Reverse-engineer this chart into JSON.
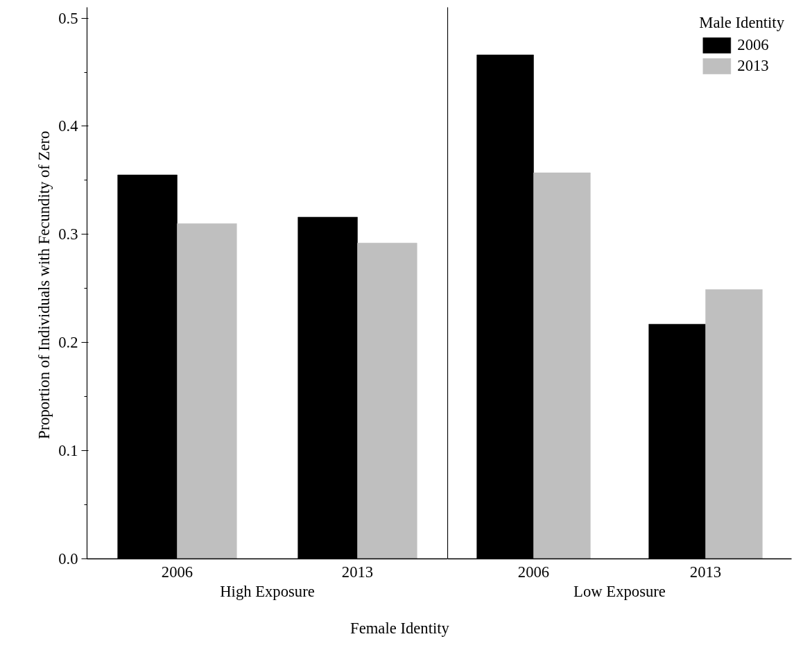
{
  "chart_data": [
    {
      "type": "bar",
      "xlabel": "High Exposure",
      "ylabel": "Proportion of  Individuals with Fecundity of Zero",
      "categories": [
        "2006",
        "2013"
      ],
      "series": [
        {
          "color": "#000000",
          "values": [
            0.355,
            0.316
          ]
        },
        {
          "color": "#bfbfbf",
          "values": [
            0.31,
            0.292
          ]
        }
      ],
      "ylim": [
        0,
        0.51
      ],
      "yticks": [
        {
          "value": 0,
          "label": "0.0"
        },
        {
          "value": 0.05,
          "label": null
        },
        {
          "value": 0.1,
          "label": "0.1"
        },
        {
          "value": 0.15,
          "label": null
        },
        {
          "value": 0.2,
          "label": "0.2"
        },
        {
          "value": 0.25,
          "label": null
        },
        {
          "value": 0.3,
          "label": "0.3"
        },
        {
          "value": 0.35,
          "label": null
        },
        {
          "value": 0.4,
          "label": "0.4"
        },
        {
          "value": 0.45,
          "label": null
        },
        {
          "value": 0.5,
          "label": "0.5"
        }
      ],
      "annotations": [
        "Female Identity"
      ],
      "grid": false
    },
    {
      "type": "bar",
      "xlabel": "Low Exposure",
      "categories": [
        "2006",
        "2013"
      ],
      "series": [
        {
          "name": "2006",
          "color": "#000000",
          "values": [
            0.466,
            0.217
          ]
        },
        {
          "name": "2013",
          "color": "#bfbfbf",
          "values": [
            0.357,
            0.249
          ]
        }
      ],
      "ylim": [
        0,
        0.51
      ],
      "tick_labels": "x",
      "legend_title": "Male Identity",
      "legend": "top right",
      "grid": false
    }
  ]
}
